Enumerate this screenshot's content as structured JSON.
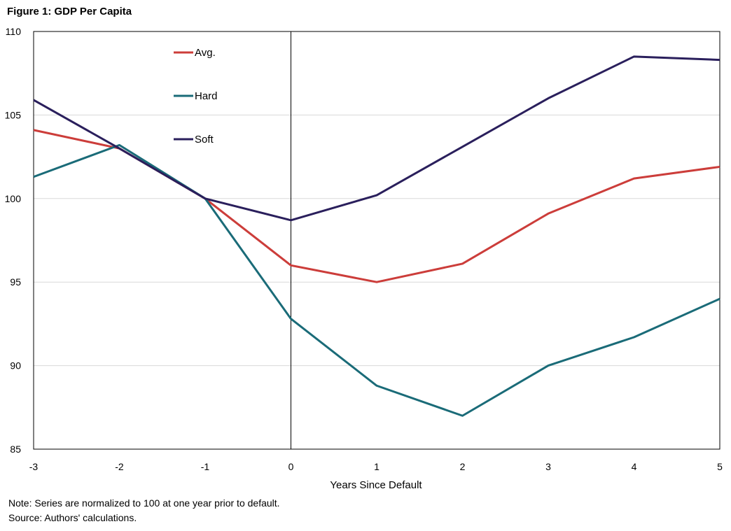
{
  "figure_title": "Figure 1: GDP Per Capita",
  "note": "Note: Series are normalized to 100 at one year prior to default.",
  "source": "Source: Authors' calculations.",
  "colors": {
    "avg": "#cc3d3a",
    "hard": "#1a6b78",
    "soft": "#2a1f5c",
    "grid": "#d9d9d9"
  },
  "chart_data": {
    "type": "line",
    "title": "Figure 1: GDP Per Capita",
    "xlabel": "Years Since Default",
    "ylabel": "",
    "x": [
      -3,
      -2,
      -1,
      0,
      1,
      2,
      3,
      4,
      5
    ],
    "xlim": [
      -3,
      5
    ],
    "ylim": [
      85,
      110
    ],
    "yticks": [
      85,
      90,
      95,
      100,
      105,
      110
    ],
    "xticks": [
      -3,
      -2,
      -1,
      0,
      1,
      2,
      3,
      4,
      5
    ],
    "grid": "horizontal",
    "vertical_reference_line": 0,
    "legend_position": "top-left",
    "series": [
      {
        "name": "Avg.",
        "color": "#cc3d3a",
        "values": [
          104.1,
          103.0,
          100.0,
          96.0,
          95.0,
          96.1,
          99.1,
          101.2,
          101.9
        ]
      },
      {
        "name": "Hard",
        "color": "#1a6b78",
        "values": [
          101.3,
          103.2,
          100.0,
          92.8,
          88.8,
          87.0,
          90.0,
          91.7,
          94.0
        ]
      },
      {
        "name": "Soft",
        "color": "#2a1f5c",
        "values": [
          105.9,
          103.0,
          100.0,
          98.7,
          100.2,
          103.1,
          106.0,
          108.5,
          108.3
        ]
      }
    ]
  }
}
